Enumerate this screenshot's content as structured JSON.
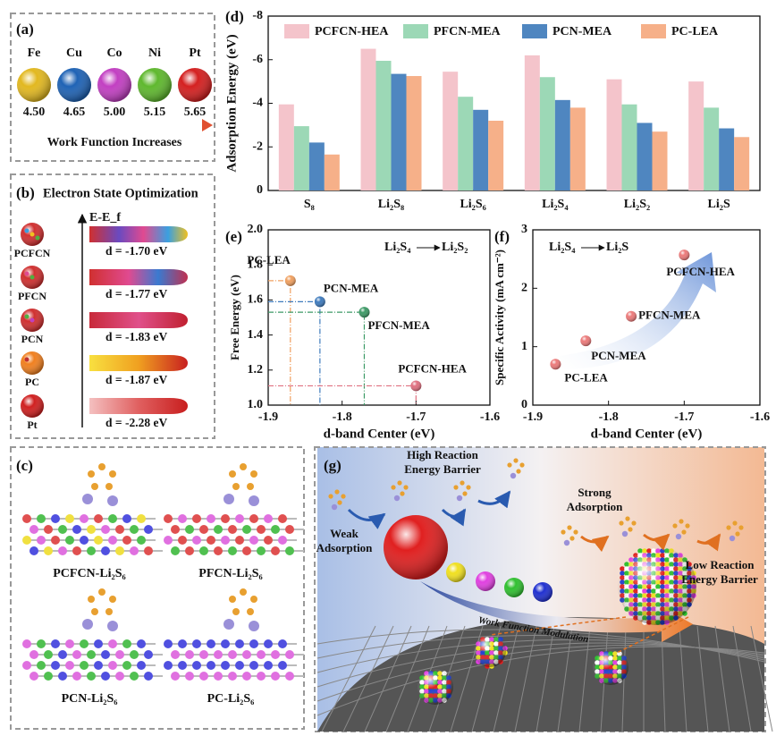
{
  "panels": {
    "a": {
      "letter": "(a)",
      "elements": [
        {
          "symbol": "Fe",
          "work_function": "4.50",
          "color": "#e2b820"
        },
        {
          "symbol": "Cu",
          "work_function": "4.65",
          "color": "#1f63b5"
        },
        {
          "symbol": "Co",
          "work_function": "5.00",
          "color": "#c23fc2"
        },
        {
          "symbol": "Ni",
          "work_function": "5.15",
          "color": "#5fb82e"
        },
        {
          "symbol": "Pt",
          "work_function": "5.65",
          "color": "#d42020"
        }
      ],
      "caption": "Work Function Increases"
    },
    "b": {
      "letter": "(b)",
      "title": "Electron State Optimization",
      "axis": "E-E_f",
      "rows": [
        {
          "label": "PCFCN",
          "d": "d = -1.70 eV"
        },
        {
          "label": "PFCN",
          "d": "d = -1.77 eV"
        },
        {
          "label": "PCN",
          "d": "d = -1.83 eV"
        },
        {
          "label": "PC",
          "d": "d = -1.87 eV"
        },
        {
          "label": "Pt",
          "d": "d = -2.28 eV"
        }
      ]
    },
    "c": {
      "letter": "(c)",
      "labels": [
        "PCFCN-Li₂S₆",
        "PFCN-Li₂S₆",
        "PCN-Li₂S₆",
        "PC-Li₂S₆"
      ]
    },
    "g": {
      "letter": "(g)",
      "high_barrier": "High Reaction Energy Barrier",
      "weak": "Weak Adsorption",
      "strong": "Strong Adsorption",
      "low_barrier": "Low Reaction Energy Barrier",
      "modulation": "Work Function Modulation"
    }
  },
  "chart_data": [
    {
      "type": "bar",
      "letter": "(d)",
      "ylabel": "Adsorption Energy (eV)",
      "categories": [
        "S₈",
        "Li₂S₈",
        "Li₂S₆",
        "Li₂S₄",
        "Li₂S₂",
        "Li₂S"
      ],
      "ylim": [
        0,
        -8
      ],
      "yticks": [
        -8,
        -6,
        -4,
        -2,
        0
      ],
      "legend": "top",
      "series": [
        {
          "name": "PCFCN-HEA",
          "color": "#f4c4cb",
          "values": [
            -3.95,
            -6.5,
            -5.45,
            -6.2,
            -5.1,
            -5.0
          ]
        },
        {
          "name": "PFCN-MEA",
          "color": "#9cd8b6",
          "values": [
            -2.95,
            -5.95,
            -4.3,
            -5.2,
            -3.95,
            -3.8
          ]
        },
        {
          "name": "PCN-MEA",
          "color": "#4f86c0",
          "values": [
            -2.2,
            -5.35,
            -3.7,
            -4.15,
            -3.1,
            -2.85
          ]
        },
        {
          "name": "PC-LEA",
          "color": "#f6b089",
          "values": [
            -1.65,
            -5.25,
            -3.2,
            -3.8,
            -2.7,
            -2.45
          ]
        }
      ]
    },
    {
      "type": "scatter",
      "letter": "(e)",
      "xlabel": "d-band Center (eV)",
      "ylabel": "Free Energy (eV)",
      "xlim": [
        -1.9,
        -1.6
      ],
      "xticks": [
        -1.9,
        -1.8,
        -1.7,
        -1.6
      ],
      "ylim": [
        1.0,
        2.0
      ],
      "yticks": [
        {
          "value": 1,
          "label": "1.0"
        },
        1.2,
        1.4,
        1.6,
        1.8,
        {
          "value": 2,
          "label": "2.0"
        }
      ],
      "guides": true,
      "annotation": {
        "from": "Li₂S₄",
        "to": "Li₂S₂"
      },
      "points": [
        {
          "name": "PC-LEA",
          "color": "#f0a060",
          "x": -1.87,
          "y": 1.71
        },
        {
          "name": "PCN-MEA",
          "color": "#3f7bbd",
          "x": -1.83,
          "y": 1.59
        },
        {
          "name": "PFCN-MEA",
          "color": "#3c9a66",
          "x": -1.77,
          "y": 1.53
        },
        {
          "name": "PCFCN-HEA",
          "color": "#e07080",
          "x": -1.7,
          "y": 1.11
        }
      ]
    },
    {
      "type": "scatter",
      "letter": "(f)",
      "xlabel": "d-band Center (eV)",
      "ylabel": "Specific Activity (mA cm⁻²)",
      "xlim": [
        -1.9,
        -1.6
      ],
      "xticks": [
        -1.9,
        -1.8,
        -1.7,
        -1.6
      ],
      "ylim": [
        0,
        3
      ],
      "yticks": [
        0,
        1,
        2,
        3
      ],
      "guides": false,
      "label_color": "#111111",
      "annotation": {
        "from": "Li₂S₄",
        "to": "Li₂S"
      },
      "points": [
        {
          "name": "PC-LEA",
          "color": "#ec7a7a",
          "x": -1.87,
          "y": 0.7
        },
        {
          "name": "PCN-MEA",
          "color": "#ec7a7a",
          "x": -1.83,
          "y": 1.1
        },
        {
          "name": "PFCN-MEA",
          "color": "#ec7a7a",
          "x": -1.77,
          "y": 1.52
        },
        {
          "name": "PCFCN-HEA",
          "color": "#ec7a7a",
          "x": -1.7,
          "y": 2.57
        }
      ]
    }
  ]
}
